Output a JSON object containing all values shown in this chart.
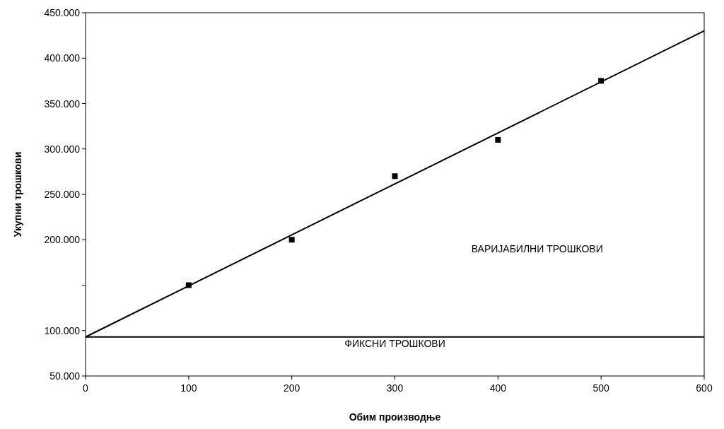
{
  "chart_data": {
    "type": "scatter",
    "xlabel": "Обим производње",
    "ylabel": "Укупни трошкови",
    "xlim": [
      0,
      600
    ],
    "xticks": [
      0,
      100,
      200,
      300,
      400,
      500,
      600
    ],
    "ylim": [
      50000,
      450000
    ],
    "yticks": [
      {
        "value": 50000,
        "label": "50.000"
      },
      {
        "value": 100000,
        "label": "100.000"
      },
      {
        "value": 150000,
        "label": null
      },
      {
        "value": 200000,
        "label": "200.000"
      },
      {
        "value": 250000,
        "label": "250.000"
      },
      {
        "value": 300000,
        "label": "300.000"
      },
      {
        "value": 350000,
        "label": "350.000"
      },
      {
        "value": 400000,
        "label": "400.000"
      },
      {
        "value": 450000,
        "label": "450.000"
      }
    ],
    "grid": false,
    "series": [
      {
        "color": "#000000",
        "marker": "square",
        "x": [
          100,
          200,
          300,
          400,
          500
        ],
        "values": [
          150000,
          200000,
          270000,
          310000,
          375000
        ]
      },
      {
        "type": "line",
        "color": "#000000",
        "line_style": "solid",
        "x": [
          0,
          600
        ],
        "values": [
          93000,
          430000
        ]
      },
      {
        "type": "line",
        "color": "#000000",
        "line_style": "solid",
        "x": [
          0,
          600
        ],
        "values": [
          93000,
          93000
        ]
      }
    ],
    "annotations": [
      "ВАРИЈАБИЛНИ ТРОШКОВИ",
      "ФИКСНИ ТРОШКОВИ"
    ]
  }
}
